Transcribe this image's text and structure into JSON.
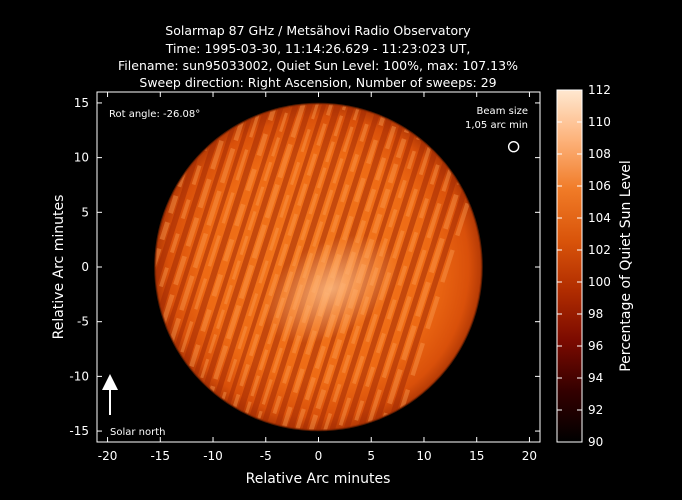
{
  "chart_data": {
    "type": "heatmap",
    "title_lines": [
      "Solarmap 87 GHz / Metsähovi Radio Observatory",
      "Time: 1995-03-30, 11:14:26.629 - 11:23:023 UT,",
      "Filename: sun95033002, Quiet Sun Level: 100%, max: 107.13%",
      "Sweep direction: Right Ascension, Number of sweeps: 29"
    ],
    "xlabel": "Relative Arc minutes",
    "ylabel": "Relative Arc minutes",
    "xlim": [
      -21,
      21
    ],
    "ylim": [
      -16,
      16
    ],
    "x_ticks": [
      -20,
      -15,
      -10,
      -5,
      0,
      5,
      10,
      15,
      20
    ],
    "y_ticks": [
      -15,
      -10,
      -5,
      0,
      5,
      10,
      15
    ],
    "grid": false,
    "disk": {
      "center": [
        0,
        0
      ],
      "radius_arcmin": 15.2
    },
    "colorbar": {
      "label": "Percentage of Quiet Sun Level",
      "min": 90,
      "max": 112,
      "ticks": [
        90,
        92,
        94,
        96,
        98,
        100,
        102,
        104,
        106,
        108,
        110,
        112
      ],
      "colors": [
        "#000000",
        "#330000",
        "#7a0a00",
        "#b02c00",
        "#d9540a",
        "#f07a26",
        "#fdb27a",
        "#ffe8d0"
      ],
      "placement": "right"
    },
    "annotations": {
      "rot_angle": "Rot angle: -26.08°",
      "beam_size_line1": "Beam size",
      "beam_size_line2": "1,05 arc min",
      "solar_north": "Solar north"
    },
    "beam_marker": {
      "x": 18.5,
      "y": 11.0,
      "diameter_arcmin": 1.05
    },
    "typical_disk_level": 101,
    "max_level": 107.13
  }
}
